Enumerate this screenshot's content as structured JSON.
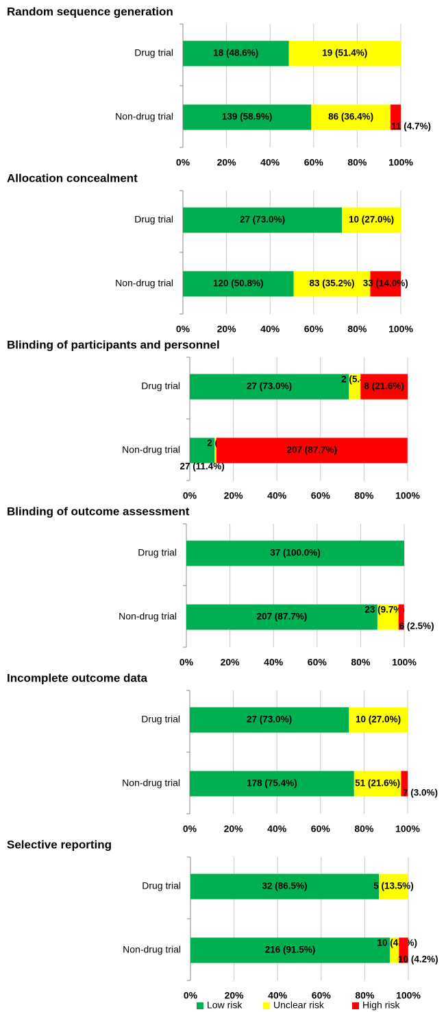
{
  "legend": {
    "series": [
      {
        "name": "Low risk",
        "color": "#00b050"
      },
      {
        "name": "Unclear risk",
        "color": "#ffff00"
      },
      {
        "name": "High risk",
        "color": "#ff0000"
      }
    ]
  },
  "chart_data": [
    {
      "type": "bar",
      "orientation": "horizontal",
      "stacked": true,
      "title": "Random sequence generation",
      "categories": [
        "Drug trial",
        "Non-drug trial"
      ],
      "series": [
        {
          "values": [
            48.6,
            58.9
          ],
          "value_labels": [
            "18 (48.6%)",
            "139 (58.9%)"
          ]
        },
        {
          "values": [
            51.4,
            36.4
          ],
          "value_labels": [
            "19 (51.4%)",
            "86 (36.4%)"
          ]
        },
        {
          "values": [
            null,
            4.7
          ],
          "value_labels": [
            null,
            "11 (4.7%)"
          ]
        }
      ],
      "xlim": [
        0,
        100
      ],
      "xticks": [
        {
          "value": 0,
          "label": "0%"
        },
        {
          "value": 20,
          "label": "20%"
        },
        {
          "value": 40,
          "label": "40%"
        },
        {
          "value": 60,
          "label": "60%"
        },
        {
          "value": 80,
          "label": "80%"
        },
        {
          "value": 100,
          "label": "100%"
        }
      ],
      "grid": true
    },
    {
      "type": "bar",
      "orientation": "horizontal",
      "stacked": true,
      "title": "Allocation concealment",
      "categories": [
        "Drug trial",
        "Non-drug trial"
      ],
      "series": [
        {
          "values": [
            73.0,
            50.8
          ],
          "value_labels": [
            "27 (73.0%)",
            "120 (50.8%)"
          ]
        },
        {
          "values": [
            27.0,
            35.2
          ],
          "value_labels": [
            "10 (27.0%)",
            "83 (35.2%)"
          ]
        },
        {
          "values": [
            null,
            14.0
          ],
          "value_labels": [
            null,
            "33 (14.0%)"
          ]
        }
      ],
      "xlim": [
        0,
        100
      ],
      "xticks": [
        {
          "value": 0,
          "label": "0%"
        },
        {
          "value": 20,
          "label": "20%"
        },
        {
          "value": 40,
          "label": "40%"
        },
        {
          "value": 60,
          "label": "60%"
        },
        {
          "value": 80,
          "label": "80%"
        },
        {
          "value": 100,
          "label": "100%"
        }
      ],
      "grid": true
    },
    {
      "type": "bar",
      "orientation": "horizontal",
      "stacked": true,
      "title": "Blinding of participants and personnel",
      "categories": [
        "Drug trial",
        "Non-drug trial"
      ],
      "series": [
        {
          "values": [
            73.0,
            11.4
          ],
          "value_labels": [
            "27 (73.0%)",
            "27 (11.4%)"
          ]
        },
        {
          "values": [
            5.4,
            0.8
          ],
          "value_labels": [
            "2 (5.4%)",
            "2 (0.8%)"
          ]
        },
        {
          "values": [
            21.6,
            87.7
          ],
          "value_labels": [
            "8 (21.6%)",
            "207 (87.7%)"
          ]
        }
      ],
      "xlim": [
        0,
        100
      ],
      "xticks": [
        {
          "value": 0,
          "label": "0%"
        },
        {
          "value": 20,
          "label": "20%"
        },
        {
          "value": 40,
          "label": "40%"
        },
        {
          "value": 60,
          "label": "60%"
        },
        {
          "value": 80,
          "label": "80%"
        },
        {
          "value": 100,
          "label": "100%"
        }
      ],
      "grid": true
    },
    {
      "type": "bar",
      "orientation": "horizontal",
      "stacked": true,
      "title": "Blinding of outcome assessment",
      "categories": [
        "Drug trial",
        "Non-drug trial"
      ],
      "series": [
        {
          "values": [
            100.0,
            87.7
          ],
          "value_labels": [
            "37 (100.0%)",
            "207 (87.7%)"
          ]
        },
        {
          "values": [
            null,
            9.7
          ],
          "value_labels": [
            null,
            "23 (9.7%)"
          ]
        },
        {
          "values": [
            null,
            2.5
          ],
          "value_labels": [
            null,
            "6 (2.5%)"
          ]
        }
      ],
      "xlim": [
        0,
        100
      ],
      "xticks": [
        {
          "value": 0,
          "label": "0%"
        },
        {
          "value": 20,
          "label": "20%"
        },
        {
          "value": 40,
          "label": "40%"
        },
        {
          "value": 60,
          "label": "60%"
        },
        {
          "value": 80,
          "label": "80%"
        },
        {
          "value": 100,
          "label": "100%"
        }
      ],
      "grid": true
    },
    {
      "type": "bar",
      "orientation": "horizontal",
      "stacked": true,
      "title": "Incomplete outcome data",
      "categories": [
        "Drug trial",
        "Non-drug trial"
      ],
      "series": [
        {
          "values": [
            73.0,
            75.4
          ],
          "value_labels": [
            "27 (73.0%)",
            "178 (75.4%)"
          ]
        },
        {
          "values": [
            27.0,
            21.6
          ],
          "value_labels": [
            "10 (27.0%)",
            "51 (21.6%)"
          ]
        },
        {
          "values": [
            null,
            3.0
          ],
          "value_labels": [
            null,
            "7 (3.0%)"
          ]
        }
      ],
      "xlim": [
        0,
        100
      ],
      "xticks": [
        {
          "value": 0,
          "label": "0%"
        },
        {
          "value": 20,
          "label": "20%"
        },
        {
          "value": 40,
          "label": "40%"
        },
        {
          "value": 60,
          "label": "60%"
        },
        {
          "value": 80,
          "label": "80%"
        },
        {
          "value": 100,
          "label": "100%"
        }
      ],
      "grid": true
    },
    {
      "type": "bar",
      "orientation": "horizontal",
      "stacked": true,
      "title": "Selective reporting",
      "categories": [
        "Drug trial",
        "Non-drug trial"
      ],
      "series": [
        {
          "values": [
            86.5,
            91.5
          ],
          "value_labels": [
            "32 (86.5%)",
            "216 (91.5%)"
          ]
        },
        {
          "values": [
            13.5,
            4.2
          ],
          "value_labels": [
            "5 (13.5%)",
            "10 (4.2%)"
          ]
        },
        {
          "values": [
            null,
            4.2
          ],
          "value_labels": [
            null,
            "10 (4.2%)"
          ]
        }
      ],
      "xlim": [
        0,
        100
      ],
      "xticks": [
        {
          "value": 0,
          "label": "0%"
        },
        {
          "value": 20,
          "label": "20%"
        },
        {
          "value": 40,
          "label": "40%"
        },
        {
          "value": 60,
          "label": "60%"
        },
        {
          "value": 80,
          "label": "80%"
        },
        {
          "value": 100,
          "label": "100%"
        }
      ],
      "grid": true
    }
  ]
}
